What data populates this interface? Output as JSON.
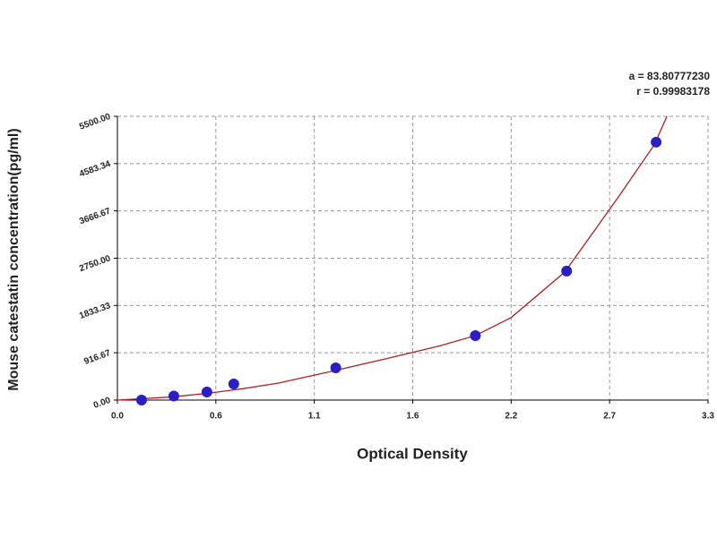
{
  "chart_data": {
    "type": "scatter",
    "xlabel": "Optical Density",
    "ylabel": "Mouse catestatin concentration(pg/ml)",
    "annotations": [
      "a = 83.80777230",
      "r = 0.99983178"
    ],
    "x": [
      0.135,
      0.315,
      0.5,
      0.65,
      1.22,
      2.0,
      2.51,
      3.01
    ],
    "values": [
      0,
      78,
      156,
      312,
      625,
      1250,
      2500,
      5000
    ],
    "color": "#2a1fc4",
    "curve": {
      "x": [
        0.0,
        0.1,
        0.3,
        0.5,
        0.7,
        0.9,
        1.2,
        1.5,
        1.8,
        2.0,
        2.2,
        2.5,
        2.8,
        3.0,
        3.07
      ],
      "values": [
        0,
        20,
        60,
        130,
        220,
        330,
        560,
        800,
        1050,
        1250,
        1600,
        2483,
        3940,
        4950,
        5500
      ],
      "color": "#b02020"
    },
    "xlim": [
      0,
      3.3
    ],
    "xticks": [
      {
        "value": 0,
        "label": "0.0"
      },
      {
        "value": 0.55,
        "label": "0.6"
      },
      {
        "value": 1.1,
        "label": "1.1"
      },
      {
        "value": 1.65,
        "label": "1.6"
      },
      {
        "value": 2.2,
        "label": "2.2"
      },
      {
        "value": 2.75,
        "label": "2.7"
      },
      {
        "value": 3.3,
        "label": "3.3"
      }
    ],
    "ylim": [
      0,
      5500
    ],
    "yticks": [
      {
        "value": 0,
        "label": "0.00"
      },
      {
        "value": 916.67,
        "label": "916.67"
      },
      {
        "value": 1833.33,
        "label": "1833.33"
      },
      {
        "value": 2750,
        "label": "2750.00"
      },
      {
        "value": 3666.67,
        "label": "3666.67"
      },
      {
        "value": 4583.34,
        "label": "4583.34"
      },
      {
        "value": 5500,
        "label": "5500.00"
      }
    ],
    "grid": true
  }
}
